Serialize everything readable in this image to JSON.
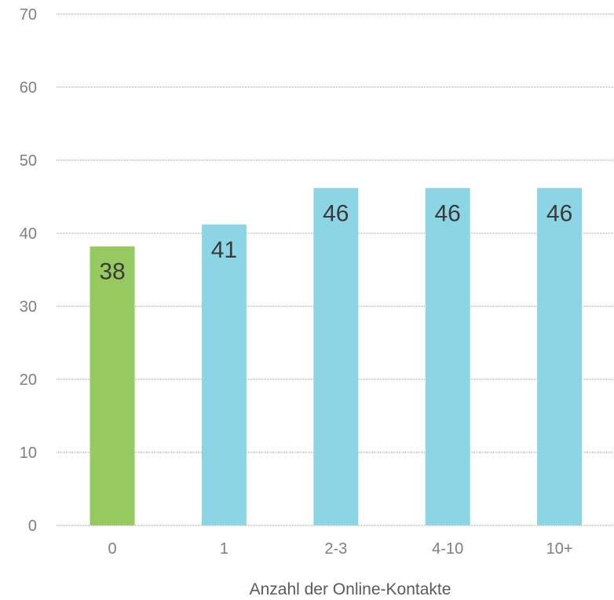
{
  "chart_data": {
    "type": "bar",
    "title": "",
    "xlabel": "Anzahl der Online-Kontakte",
    "ylabel": "",
    "categories": [
      "0",
      "1",
      "2-3",
      "4-10",
      "10+"
    ],
    "values": [
      38,
      41,
      46,
      46,
      46
    ],
    "bar_colors": [
      "#96c95f",
      "#8bd5e4",
      "#8bd5e4",
      "#8bd5e4",
      "#8bd5e4"
    ],
    "data_labels": [
      "38",
      "41",
      "46",
      "46",
      "46"
    ],
    "ylim": [
      0,
      70
    ],
    "yticks": [
      0,
      10,
      20,
      30,
      40,
      50,
      60,
      70
    ],
    "grid": true,
    "legend": "none"
  }
}
